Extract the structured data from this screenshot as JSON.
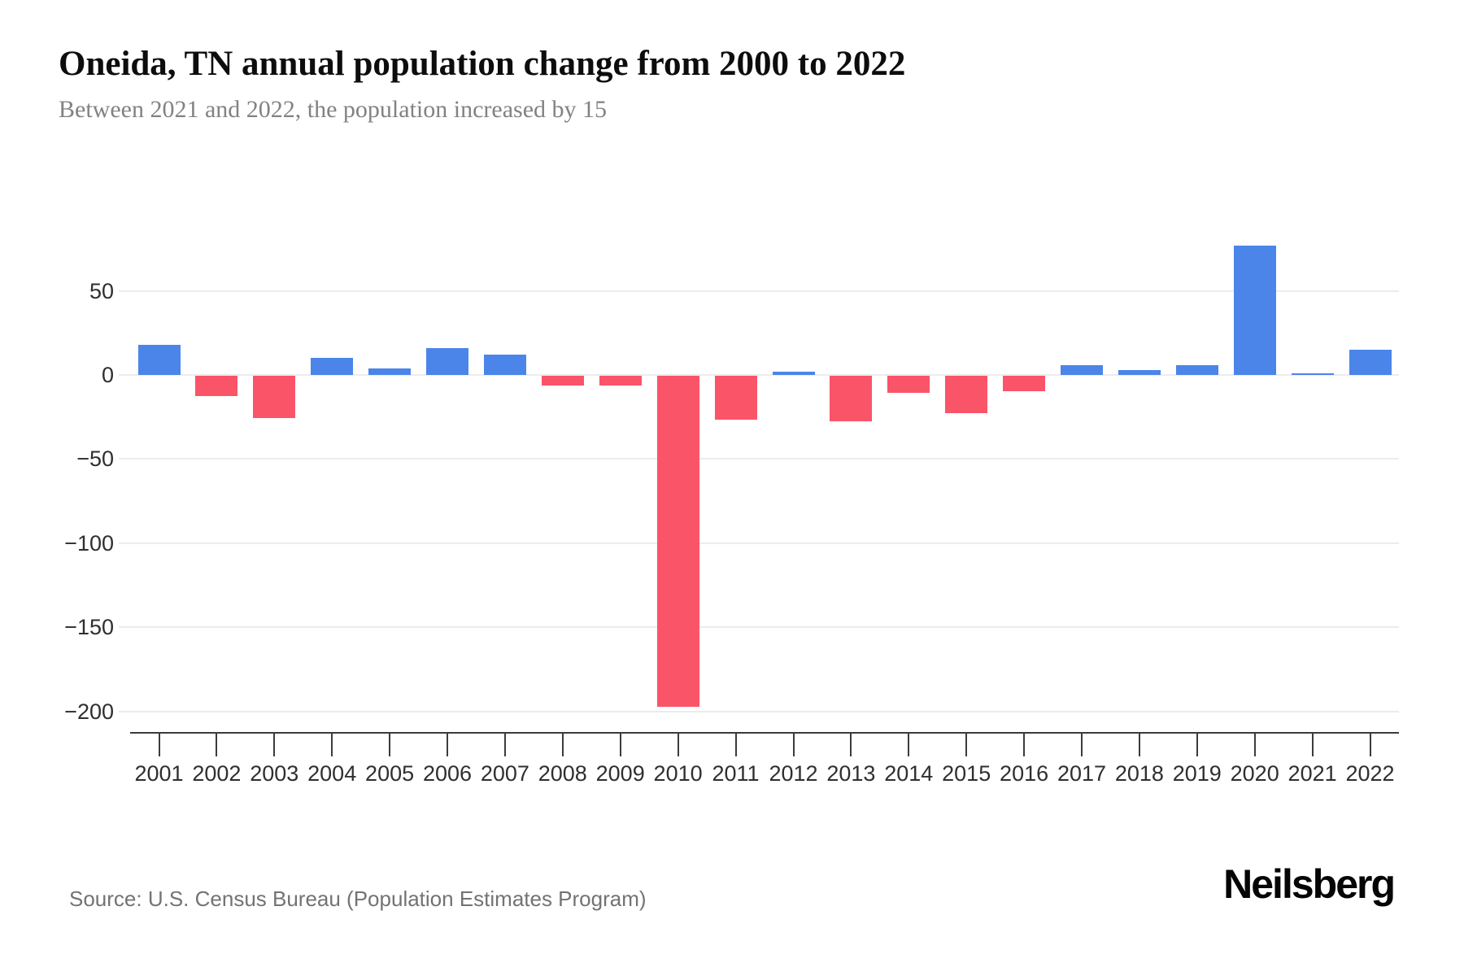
{
  "header": {
    "title": "Oneida, TN annual population change from 2000 to 2022",
    "subtitle": "Between 2021 and 2022, the population increased by 15"
  },
  "footer": {
    "source": "Source: U.S. Census Bureau (Population Estimates Program)",
    "brand": "Neilsberg"
  },
  "colors": {
    "positive": "#4b85e9",
    "negative": "#fa5468",
    "gridline": "#ececec",
    "axis": "#3c3c3c",
    "title_text": "#0d0d0d",
    "subtitle_text": "#828282",
    "tick_text": "#2f2f2f",
    "source_text": "#737373"
  },
  "chart_data": {
    "type": "bar",
    "title": "Oneida, TN annual population change from 2000 to 2022",
    "subtitle": "Between 2021 and 2022, the population increased by 15",
    "xlabel": "",
    "ylabel": "",
    "categories": [
      "2001",
      "2002",
      "2003",
      "2004",
      "2005",
      "2006",
      "2007",
      "2008",
      "2009",
      "2010",
      "2011",
      "2012",
      "2013",
      "2014",
      "2015",
      "2016",
      "2017",
      "2018",
      "2019",
      "2020",
      "2021",
      "2022"
    ],
    "values": [
      18,
      -12,
      -25,
      10,
      4,
      16,
      12,
      -6,
      -6,
      -197,
      -26,
      2,
      -27,
      -10,
      -22,
      -9,
      6,
      3,
      6,
      77,
      1,
      15
    ],
    "yticks": [
      {
        "value": 50,
        "label": "50"
      },
      {
        "value": 0,
        "label": "0"
      },
      {
        "value": -50,
        "label": "−50"
      },
      {
        "value": -100,
        "label": "−100"
      },
      {
        "value": -150,
        "label": "−150"
      },
      {
        "value": -200,
        "label": "−200"
      }
    ],
    "ylim": [
      -215,
      95
    ],
    "grid": true,
    "legend": false,
    "bar_colors": {
      "positive": "#4b85e9",
      "negative": "#fa5468"
    }
  }
}
